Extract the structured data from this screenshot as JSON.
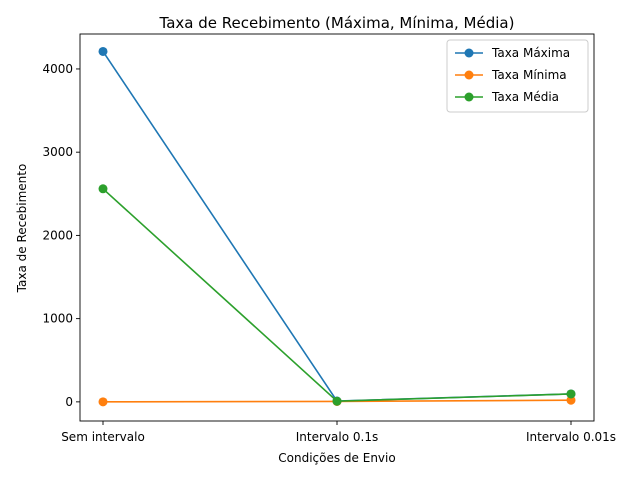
{
  "chart_data": {
    "type": "line",
    "title": "Taxa de Recebimento (Máxima, Mínima, Média)",
    "xlabel": "Condições de Envio",
    "ylabel": "Taxa de Recebimento",
    "categories": [
      "Sem intervalo",
      "Intervalo 0.1s",
      "Intervalo 0.01s"
    ],
    "ylim": [
      -230,
      4420
    ],
    "yticks": [
      0,
      1000,
      2000,
      3000,
      4000
    ],
    "legend_position": "top-right",
    "grid": false,
    "series": [
      {
        "name": "Taxa Máxima",
        "color": "#1f77b4",
        "values": [
          4210,
          10,
          95
        ]
      },
      {
        "name": "Taxa Mínima",
        "color": "#ff7f0e",
        "values": [
          0,
          5,
          20
        ]
      },
      {
        "name": "Taxa Média",
        "color": "#2ca02c",
        "values": [
          2560,
          8,
          95
        ]
      }
    ]
  }
}
